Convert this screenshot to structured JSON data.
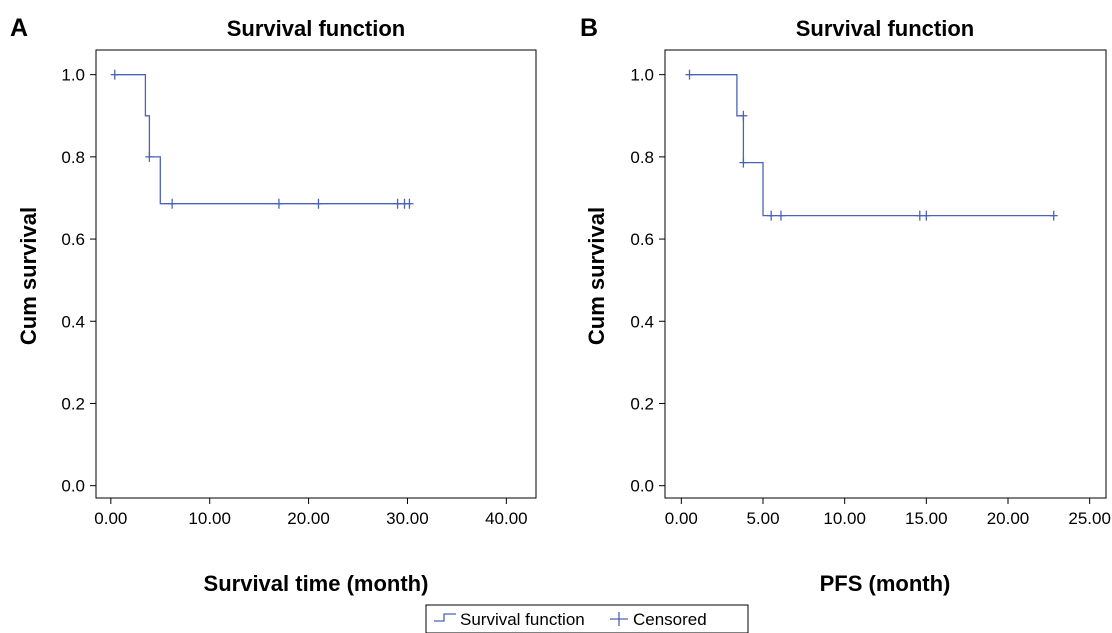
{
  "colors": {
    "series": "#4a63b8",
    "axis": "#000000",
    "frame": "#000000"
  },
  "legend": {
    "placement": "bottom-center",
    "survival_label": "Survival function",
    "censored_label": "Censored"
  },
  "chart_data": [
    {
      "type": "line",
      "panel_letter": "A",
      "title": "Survival function",
      "xlabel": "Survival time (month)",
      "ylabel": "Cum survival",
      "xlim": [
        -1.5,
        43.0
      ],
      "ylim": [
        -0.03,
        1.06
      ],
      "xticks": [
        0,
        10,
        20,
        30,
        40
      ],
      "xtick_labels": [
        "0.00",
        "10.00",
        "20.00",
        "30.00",
        "40.00"
      ],
      "yticks": [
        0,
        0.2,
        0.4,
        0.6,
        0.8,
        1.0
      ],
      "ytick_labels": [
        "0.0",
        "0.2",
        "0.4",
        "0.6",
        "0.8",
        "1.0"
      ],
      "series": [
        {
          "name": "Survival function",
          "step_points": [
            [
              0.4,
              1.0
            ],
            [
              3.5,
              1.0
            ],
            [
              3.5,
              0.9
            ],
            [
              3.9,
              0.9
            ],
            [
              3.9,
              0.8
            ],
            [
              5.0,
              0.8
            ],
            [
              5.0,
              0.686
            ],
            [
              30.2,
              0.686
            ]
          ]
        },
        {
          "name": "Censored",
          "points": [
            [
              0.4,
              1.0
            ],
            [
              3.9,
              0.8
            ],
            [
              6.2,
              0.686
            ],
            [
              17.0,
              0.686
            ],
            [
              21.0,
              0.686
            ],
            [
              29.0,
              0.686
            ],
            [
              29.7,
              0.686
            ],
            [
              30.2,
              0.686
            ]
          ]
        }
      ]
    },
    {
      "type": "line",
      "panel_letter": "B",
      "title": "Survival function",
      "xlabel": "PFS (month)",
      "ylabel": "Cum survival",
      "xlim": [
        -1.0,
        26.0
      ],
      "ylim": [
        -0.03,
        1.06
      ],
      "xticks": [
        0,
        5,
        10,
        15,
        20,
        25
      ],
      "xtick_labels": [
        "0.00",
        "5.00",
        "10.00",
        "15.00",
        "20.00",
        "25.00"
      ],
      "yticks": [
        0,
        0.2,
        0.4,
        0.6,
        0.8,
        1.0
      ],
      "ytick_labels": [
        "0.0",
        "0.2",
        "0.4",
        "0.6",
        "0.8",
        "1.0"
      ],
      "series": [
        {
          "name": "Survival function",
          "step_points": [
            [
              0.5,
              1.0
            ],
            [
              3.4,
              1.0
            ],
            [
              3.4,
              0.9
            ],
            [
              3.8,
              0.9
            ],
            [
              3.8,
              0.786
            ],
            [
              5.0,
              0.786
            ],
            [
              5.0,
              0.657
            ],
            [
              22.8,
              0.657
            ]
          ]
        },
        {
          "name": "Censored",
          "points": [
            [
              0.5,
              1.0
            ],
            [
              3.8,
              0.9
            ],
            [
              3.8,
              0.786
            ],
            [
              5.5,
              0.657
            ],
            [
              6.1,
              0.657
            ],
            [
              14.6,
              0.657
            ],
            [
              15.0,
              0.657
            ],
            [
              22.8,
              0.657
            ]
          ]
        }
      ]
    }
  ]
}
